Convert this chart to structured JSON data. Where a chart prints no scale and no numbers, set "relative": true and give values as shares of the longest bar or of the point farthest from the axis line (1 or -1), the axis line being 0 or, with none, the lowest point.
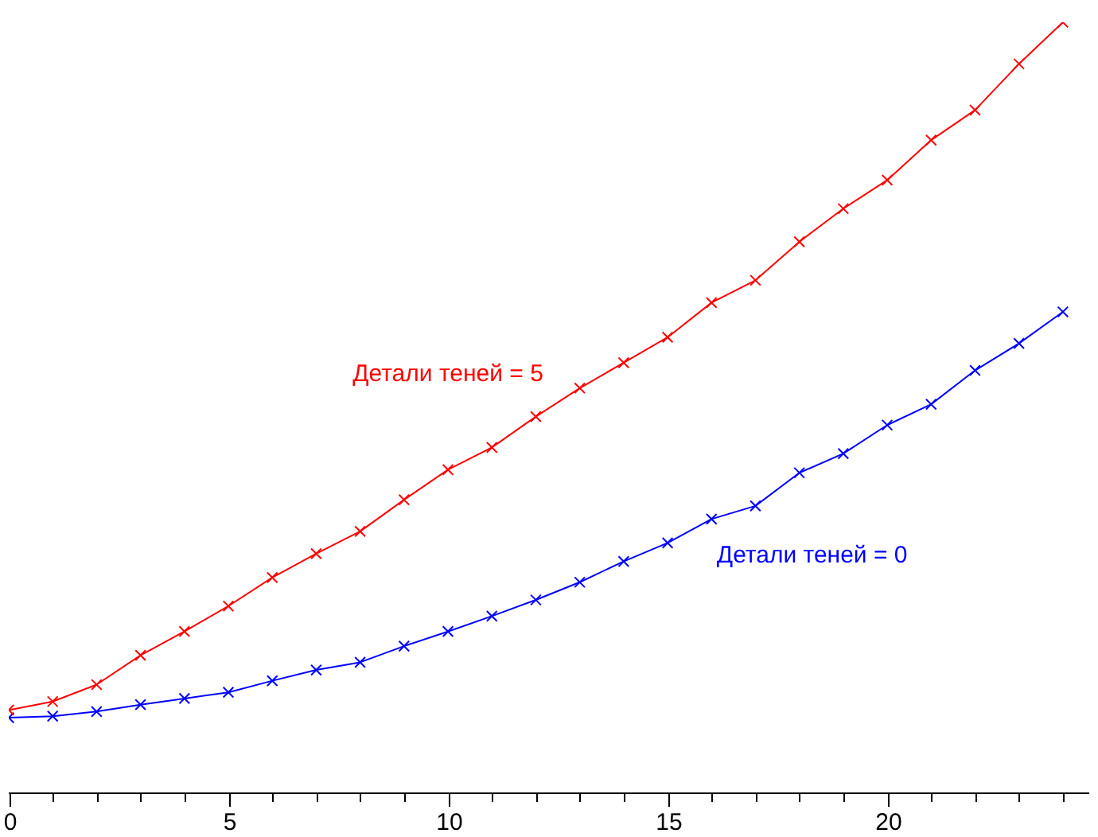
{
  "chart_data": {
    "type": "line",
    "relative": true,
    "x": [
      0,
      1,
      2,
      3,
      4,
      5,
      6,
      7,
      8,
      9,
      10,
      11,
      12,
      13,
      14,
      15,
      16,
      17,
      18,
      19,
      20,
      21,
      22,
      23,
      24
    ],
    "xlim": [
      0,
      24.6
    ],
    "xticks": [
      0,
      {
        "value": 1,
        "label": null
      },
      {
        "value": 2,
        "label": null
      },
      {
        "value": 3,
        "label": null
      },
      {
        "value": 4,
        "label": null
      },
      5,
      {
        "value": 6,
        "label": null
      },
      {
        "value": 7,
        "label": null
      },
      {
        "value": 8,
        "label": null
      },
      {
        "value": 9,
        "label": null
      },
      10,
      {
        "value": 11,
        "label": null
      },
      {
        "value": 12,
        "label": null
      },
      {
        "value": 13,
        "label": null
      },
      {
        "value": 14,
        "label": null
      },
      15,
      {
        "value": 16,
        "label": null
      },
      {
        "value": 17,
        "label": null
      },
      {
        "value": 18,
        "label": null
      },
      {
        "value": 19,
        "label": null
      },
      20,
      {
        "value": 21,
        "label": null
      },
      {
        "value": 22,
        "label": null
      },
      {
        "value": 23,
        "label": null
      },
      {
        "value": 24,
        "label": null
      }
    ],
    "series": [
      {
        "name": "Детали теней = 5",
        "color": "#ff0000",
        "values": [
          0.107,
          0.118,
          0.14,
          0.178,
          0.209,
          0.242,
          0.279,
          0.31,
          0.339,
          0.38,
          0.419,
          0.448,
          0.488,
          0.525,
          0.558,
          0.591,
          0.636,
          0.665,
          0.715,
          0.758,
          0.795,
          0.847,
          0.886,
          0.946,
          1
        ]
      },
      {
        "name": "Детали теней = 0",
        "color": "#0000ff",
        "values": [
          0.097,
          0.099,
          0.105,
          0.114,
          0.122,
          0.13,
          0.145,
          0.159,
          0.169,
          0.19,
          0.209,
          0.229,
          0.25,
          0.273,
          0.3,
          0.324,
          0.355,
          0.372,
          0.415,
          0.44,
          0.477,
          0.504,
          0.548,
          0.583,
          0.624
        ]
      }
    ],
    "marker": "cross",
    "line_style": "solid",
    "grid": false,
    "legend": false
  }
}
